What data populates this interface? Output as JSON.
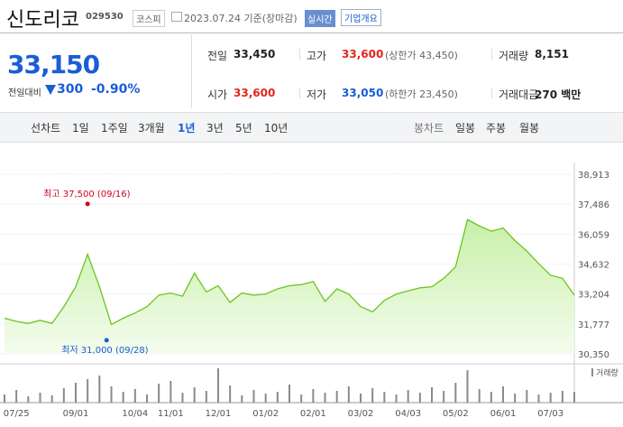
{
  "header": {
    "name": "신도리코",
    "code": "029530",
    "market": "코스피",
    "date": "2023.07.24 기준(장마감)",
    "realtime": "실시간",
    "overview": "기업개요"
  },
  "quote": {
    "price": "33,150",
    "change_label": "전일대비",
    "change": "300",
    "change_pct": "-0.90%",
    "stats": [
      {
        "label": "전일",
        "value": "33,450"
      },
      {
        "label": "고가",
        "value": "33,600",
        "note": "(상한가 43,450)"
      },
      {
        "label": "거래량",
        "value": "8,151"
      },
      {
        "label": "시가",
        "value": "33,600"
      },
      {
        "label": "저가",
        "value": "33,050",
        "note": "(하한가 23,450)"
      },
      {
        "label": "거래대금",
        "value": "270 백만"
      }
    ]
  },
  "periods": {
    "line_label": "선차트",
    "line": [
      "1일",
      "1주일",
      "3개월",
      "1년",
      "3년",
      "5년",
      "10년"
    ],
    "active": 3,
    "candle_label": "봉차트",
    "candle": [
      "일봉",
      "주봉",
      "월봉"
    ]
  },
  "chart_data": [
    {
      "type": "line",
      "color": "#6cc521",
      "grid": true,
      "categories": [
        null,
        "07/25",
        null,
        null,
        null,
        null,
        "09/01",
        null,
        null,
        null,
        null,
        "10/04",
        null,
        null,
        "11/01",
        null,
        null,
        null,
        "12/01",
        null,
        null,
        null,
        "01/02",
        null,
        null,
        null,
        "02/01",
        null,
        null,
        null,
        "03/02",
        null,
        null,
        null,
        "04/03",
        null,
        null,
        null,
        "05/02",
        null,
        null,
        null,
        "06/01",
        null,
        null,
        null,
        "07/03",
        null,
        null
      ],
      "values": [
        32050,
        31900,
        31800,
        31950,
        31800,
        32600,
        33550,
        35100,
        33550,
        31750,
        32050,
        32300,
        32600,
        33150,
        33250,
        33100,
        34200,
        33300,
        33600,
        32800,
        33250,
        33150,
        33200,
        33450,
        33600,
        33650,
        33800,
        32850,
        33450,
        33200,
        32600,
        32350,
        32900,
        33200,
        33350,
        33500,
        33550,
        33950,
        34500,
        36750,
        36450,
        36200,
        36350,
        35750,
        35250,
        34650,
        34100,
        33950,
        33150
      ],
      "ylim": [
        30350,
        38913
      ],
      "yticks": [
        {
          "value": 30350,
          "label": "30,350"
        },
        {
          "value": 31777,
          "label": "31,777"
        },
        {
          "value": 33204,
          "label": "33,204"
        },
        {
          "value": 34632,
          "label": "34,632"
        },
        {
          "value": 36059,
          "label": "36,059"
        },
        {
          "value": 37486,
          "label": "37,486"
        },
        {
          "value": 38913,
          "label": "38,913"
        }
      ],
      "annotations": [
        {
          "text": "최고 37,500 (09/16)",
          "value": 37500,
          "at": 7,
          "color": "#d0021b"
        },
        {
          "text": "최저 31,000 (09/28)",
          "value": 31000,
          "at": 8.6,
          "color": "#1a5dd6"
        }
      ]
    },
    {
      "type": "bar",
      "name": "거래량",
      "color": "#8a8a8a",
      "values": [
        9000,
        14000,
        7000,
        11000,
        8000,
        16000,
        22000,
        26000,
        30000,
        18000,
        12000,
        15000,
        9000,
        21000,
        24000,
        11000,
        17000,
        13000,
        38000,
        19000,
        8000,
        14000,
        10000,
        12000,
        20000,
        9000,
        15000,
        11000,
        13000,
        18000,
        10000,
        16000,
        12000,
        9000,
        14000,
        11000,
        17000,
        13000,
        22000,
        36000,
        15000,
        12000,
        18000,
        10000,
        14000,
        9000,
        11000,
        13000,
        12000
      ]
    }
  ]
}
